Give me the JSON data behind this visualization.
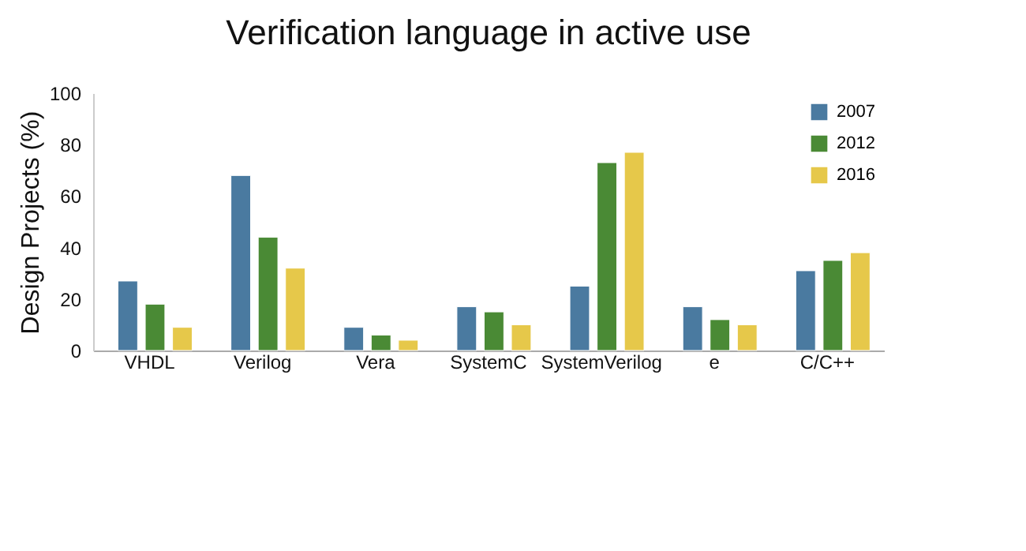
{
  "chart_data": {
    "type": "bar",
    "title": "Verification language in active use",
    "ylabel": "Design Projects (%)",
    "categories": [
      "VHDL",
      "Verilog",
      "Vera",
      "SystemC",
      "SystemVerilog",
      "e",
      "C/C++"
    ],
    "series": [
      {
        "name": "2007",
        "color": "#4a7aa0",
        "values": [
          27,
          68,
          9,
          17,
          25,
          17,
          31
        ]
      },
      {
        "name": "2012",
        "color": "#4a8a35",
        "values": [
          18,
          44,
          6,
          15,
          73,
          12,
          35
        ]
      },
      {
        "name": "2016",
        "color": "#e6c84a",
        "values": [
          9,
          32,
          4,
          10,
          77,
          10,
          38
        ]
      }
    ],
    "ylim": [
      0,
      100
    ],
    "yticks": [
      0,
      20,
      40,
      60,
      80,
      100
    ],
    "grid": false,
    "legend": "top right"
  }
}
